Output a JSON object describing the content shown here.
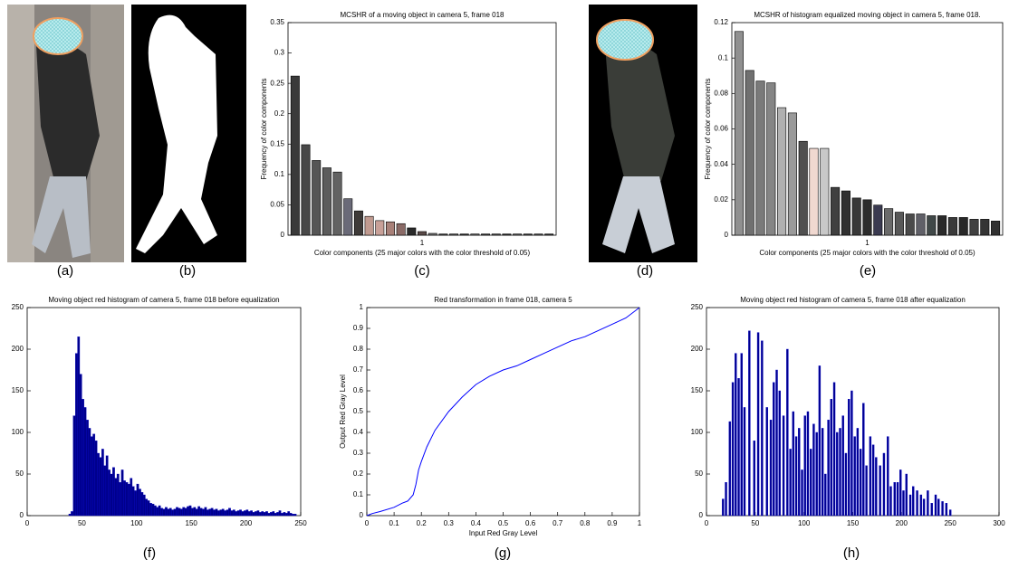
{
  "panel_labels": [
    "(a)",
    "(b)",
    "(c)",
    "(d)",
    "(e)",
    "(f)",
    "(g)",
    "(h)"
  ],
  "chart_data": [
    {
      "type": "bar",
      "title": "MCSHR of a moving object in camera 5, frame 018",
      "xlabel": "Color components (25 major colors with the color threshold of 0.05)",
      "ylabel": "Frequency of color components",
      "categories": [
        null,
        null,
        null,
        null,
        null,
        null,
        null,
        null,
        null,
        null,
        null,
        null,
        null,
        null,
        null,
        null,
        null,
        null,
        null,
        null,
        null,
        null,
        null,
        null,
        null
      ],
      "values": [
        0.262,
        0.149,
        0.123,
        0.111,
        0.104,
        0.06,
        0.04,
        0.031,
        0.024,
        0.022,
        0.019,
        0.012,
        0.006,
        0.003,
        0.002,
        0.002,
        0.002,
        0.002,
        0.002,
        0.002,
        0.002,
        0.002,
        0.002,
        0.002,
        0.002
      ],
      "colors": [
        "#3a3a3a",
        "#484848",
        "#555555",
        "#5c5c5c",
        "#626262",
        "#6a6a78",
        "#3e3a38",
        "#c09a90",
        "#c8a098",
        "#a88078",
        "#8a6a66",
        "#2a2a2a",
        "#5a4a48",
        "#707070",
        "#404040",
        "#505050",
        "#303030",
        "#606060",
        "#383838",
        "#484848",
        "#2c2c2c",
        "#555555",
        "#3a3a3a",
        "#4a4a4a",
        "#303030"
      ],
      "xlim": [
        0.6,
        1.4
      ],
      "xticks": [
        1
      ],
      "ylim": [
        0,
        0.35
      ],
      "yticks": [
        0,
        0.05,
        0.1,
        0.15,
        0.2,
        0.25,
        0.3,
        0.35
      ]
    },
    {
      "type": "bar",
      "title": "MCSHR of histogram equalized moving object in camera 5, frame 018.",
      "xlabel": "Color components (25 major colors with the color threshold of 0.05)",
      "ylabel": "Frequency of color components",
      "categories": [
        null,
        null,
        null,
        null,
        null,
        null,
        null,
        null,
        null,
        null,
        null,
        null,
        null,
        null,
        null,
        null,
        null,
        null,
        null,
        null,
        null,
        null,
        null,
        null,
        null
      ],
      "values": [
        0.115,
        0.093,
        0.087,
        0.086,
        0.072,
        0.069,
        0.053,
        0.049,
        0.049,
        0.027,
        0.025,
        0.021,
        0.02,
        0.017,
        0.015,
        0.013,
        0.012,
        0.012,
        0.011,
        0.011,
        0.01,
        0.01,
        0.009,
        0.009,
        0.008
      ],
      "colors": [
        "#909090",
        "#707070",
        "#7a7a7a",
        "#858585",
        "#b0b0b0",
        "#9a9a9a",
        "#505050",
        "#f0d8d0",
        "#c8c8c8",
        "#404040",
        "#303030",
        "#383838",
        "#2c2c2c",
        "#3a3a50",
        "#6a6a6a",
        "#585858",
        "#4a4a4a",
        "#606068",
        "#404848",
        "#2a2a2a",
        "#3a3a3a",
        "#282828",
        "#404040",
        "#343434",
        "#303030"
      ],
      "xlim": [
        0.6,
        1.4
      ],
      "xticks": [
        1
      ],
      "ylim": [
        0,
        0.12
      ],
      "yticks": [
        0,
        0.02,
        0.04,
        0.06,
        0.08,
        0.1,
        0.12
      ]
    },
    {
      "type": "histogram",
      "title": "Moving object red histogram of camera 5, frame 018 before equalization",
      "color": "#00008b",
      "bins": [
        38,
        40,
        42,
        44,
        46,
        48,
        50,
        52,
        54,
        56,
        58,
        60,
        62,
        64,
        66,
        68,
        70,
        72,
        74,
        76,
        78,
        80,
        82,
        84,
        86,
        88,
        90,
        92,
        94,
        96,
        98,
        100,
        102,
        104,
        106,
        108,
        110,
        112,
        114,
        116,
        118,
        120,
        122,
        124,
        126,
        128,
        130,
        132,
        134,
        136,
        138,
        140,
        142,
        144,
        146,
        148,
        150,
        152,
        154,
        156,
        158,
        160,
        162,
        164,
        166,
        168,
        170,
        172,
        174,
        176,
        178,
        180,
        182,
        184,
        186,
        188,
        190,
        192,
        194,
        196,
        198,
        200,
        202,
        204,
        206,
        208,
        210,
        212,
        214,
        216,
        218,
        220,
        222,
        224,
        226,
        228,
        230,
        232,
        234,
        236,
        238,
        240,
        242,
        244,
        246
      ],
      "values": [
        2,
        5,
        120,
        195,
        215,
        170,
        140,
        130,
        115,
        105,
        95,
        98,
        90,
        75,
        70,
        80,
        60,
        72,
        55,
        50,
        58,
        45,
        50,
        40,
        55,
        42,
        40,
        38,
        45,
        35,
        30,
        38,
        32,
        28,
        25,
        20,
        18,
        15,
        14,
        12,
        10,
        12,
        9,
        8,
        10,
        8,
        9,
        7,
        8,
        10,
        9,
        8,
        10,
        9,
        11,
        12,
        9,
        10,
        8,
        11,
        9,
        8,
        10,
        7,
        8,
        9,
        7,
        8,
        6,
        7,
        8,
        6,
        7,
        9,
        6,
        7,
        5,
        6,
        7,
        5,
        6,
        7,
        5,
        6,
        4,
        5,
        6,
        4,
        5,
        4,
        5,
        3,
        4,
        5,
        3,
        4,
        6,
        3,
        4,
        3,
        5,
        3,
        2,
        2
      ],
      "xlim": [
        0,
        250
      ],
      "xticks": [
        0,
        50,
        100,
        150,
        200,
        250
      ],
      "ylim": [
        0,
        250
      ],
      "yticks": [
        0,
        50,
        100,
        150,
        200,
        250
      ]
    },
    {
      "type": "line",
      "title": "Red transformation in frame 018, camera 5",
      "xlabel": "Input Red Gray Level",
      "ylabel": "Output Red Gray Level",
      "color": "#0000ff",
      "x": [
        0,
        0.02,
        0.05,
        0.1,
        0.13,
        0.15,
        0.17,
        0.18,
        0.19,
        0.2,
        0.22,
        0.25,
        0.3,
        0.35,
        0.4,
        0.45,
        0.5,
        0.55,
        0.6,
        0.65,
        0.7,
        0.75,
        0.8,
        0.85,
        0.9,
        0.95,
        0.98,
        1
      ],
      "values": [
        0,
        0.01,
        0.02,
        0.04,
        0.06,
        0.07,
        0.1,
        0.15,
        0.22,
        0.26,
        0.33,
        0.41,
        0.5,
        0.57,
        0.63,
        0.67,
        0.7,
        0.72,
        0.75,
        0.78,
        0.81,
        0.84,
        0.86,
        0.89,
        0.92,
        0.95,
        0.98,
        1
      ],
      "xlim": [
        0,
        1
      ],
      "xticks": [
        0,
        0.1,
        0.2,
        0.3,
        0.4,
        0.5,
        0.6,
        0.7,
        0.8,
        0.9,
        1
      ],
      "ylim": [
        0,
        1
      ],
      "yticks": [
        0,
        0.1,
        0.2,
        0.3,
        0.4,
        0.5,
        0.6,
        0.7,
        0.8,
        0.9,
        1
      ]
    },
    {
      "type": "bar",
      "title": "Moving object red histogram of camera 5, frame 018 after equalization",
      "color": "#00008b",
      "x": [
        17,
        20,
        24,
        27,
        30,
        33,
        36,
        39,
        44,
        49,
        53,
        57,
        62,
        66,
        69,
        72,
        75,
        79,
        83,
        86,
        89,
        92,
        95,
        98,
        101,
        104,
        107,
        110,
        113,
        116,
        119,
        122,
        125,
        128,
        131,
        134,
        137,
        140,
        143,
        146,
        149,
        152,
        155,
        158,
        161,
        164,
        168,
        171,
        174,
        178,
        182,
        186,
        189,
        193,
        196,
        199,
        202,
        205,
        209,
        212,
        216,
        220,
        223,
        227,
        231,
        235,
        238,
        242,
        246,
        250
      ],
      "values": [
        20,
        40,
        113,
        160,
        195,
        165,
        195,
        130,
        222,
        90,
        220,
        210,
        130,
        115,
        160,
        175,
        150,
        120,
        200,
        80,
        125,
        95,
        105,
        55,
        120,
        125,
        80,
        110,
        100,
        180,
        105,
        50,
        115,
        140,
        160,
        100,
        105,
        120,
        75,
        140,
        150,
        95,
        105,
        80,
        135,
        60,
        95,
        85,
        70,
        60,
        75,
        95,
        35,
        40,
        40,
        55,
        30,
        50,
        25,
        35,
        30,
        25,
        20,
        30,
        15,
        25,
        20,
        17,
        15,
        7
      ],
      "xlim": [
        0,
        300
      ],
      "xticks": [
        0,
        50,
        100,
        150,
        200,
        250,
        300
      ],
      "ylim": [
        0,
        250
      ],
      "yticks": [
        0,
        50,
        100,
        150,
        200,
        250
      ]
    }
  ]
}
